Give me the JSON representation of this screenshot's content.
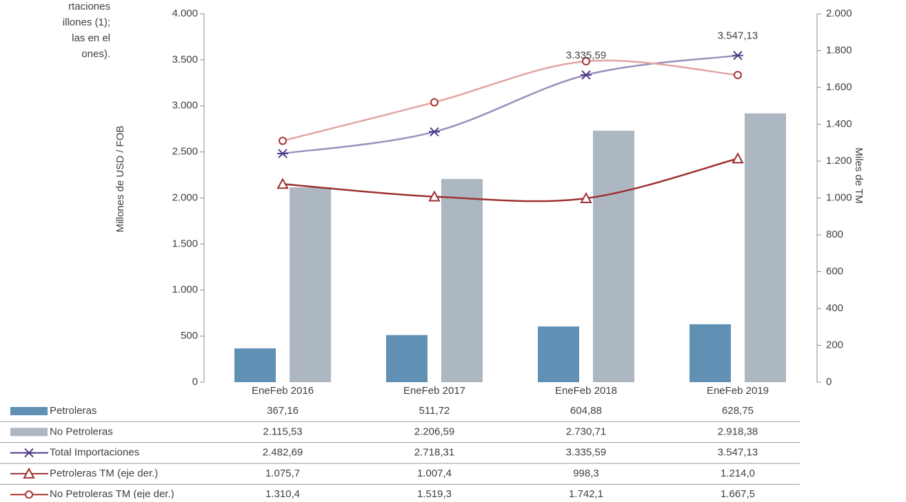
{
  "chart_data": {
    "type": "bar_line",
    "note_lines": [
      "rtaciones",
      "illones (1);",
      "las en el",
      "ones)."
    ],
    "y_label": "Millones de USD / FOB",
    "y2_label": "Miles de TM",
    "categories": [
      "EneFeb 2016",
      "EneFeb 2017",
      "EneFeb 2018",
      "EneFeb 2019"
    ],
    "ylim": [
      0,
      4000
    ],
    "yticks": [
      0,
      500,
      {
        "value": 1000,
        "label": "1.000"
      },
      {
        "value": 1500,
        "label": "1.500"
      },
      {
        "value": 2000,
        "label": "2.000"
      },
      {
        "value": 2500,
        "label": "2.500"
      },
      {
        "value": 3000,
        "label": "3.000"
      },
      {
        "value": 3500,
        "label": "3.500"
      },
      {
        "value": 4000,
        "label": "4.000"
      }
    ],
    "y2lim": [
      0,
      2000
    ],
    "y2ticks": [
      0,
      200,
      400,
      600,
      800,
      {
        "value": 1000,
        "label": "1.000"
      },
      {
        "value": 1200,
        "label": "1.200"
      },
      {
        "value": 1400,
        "label": "1.400"
      },
      {
        "value": 1600,
        "label": "1.600"
      },
      {
        "value": 1800,
        "label": "1.800"
      },
      {
        "value": 2000,
        "label": "2.000"
      }
    ],
    "series": [
      {
        "name": "Petroleras",
        "kind": "bar",
        "color": "#6190b5",
        "values": [
          367.16,
          511.72,
          604.88,
          628.75
        ],
        "value_labels": [
          "367,16",
          "511,72",
          "604,88",
          "628,75"
        ]
      },
      {
        "name": "No Petroleras",
        "kind": "bar",
        "color": "#adb7c1",
        "values": [
          2115.53,
          2206.59,
          2730.71,
          2918.38
        ],
        "value_labels": [
          "2.115,53",
          "2.206,59",
          "2.730,71",
          "2.918,38"
        ]
      },
      {
        "name": "Total Importaciones",
        "kind": "line",
        "marker": "star",
        "color": "#9a8fbd",
        "marker_color": "#4e3a87",
        "values": [
          2482.69,
          2718.31,
          3335.59,
          3547.13
        ],
        "value_labels": [
          "2.482,69",
          "2.718,31",
          "3.335,59",
          "3.547,13"
        ]
      },
      {
        "name": "Petroleras TM (eje der.)",
        "kind": "line",
        "axis": "y2",
        "marker": "triangle",
        "color": "#9c3030",
        "marker_color": "#9c3030",
        "values": [
          1075.7,
          1007.4,
          998.3,
          1214.0
        ],
        "value_labels": [
          "1.075,7",
          "1.007,4",
          "998,3",
          "1.214,0"
        ]
      },
      {
        "name": "No Petroleras TM (eje der.)",
        "kind": "line",
        "axis": "y2",
        "marker": "circle",
        "color": "#e3a3a3",
        "marker_color": "#a83232",
        "values": [
          1310.4,
          1519.3,
          1742.1,
          1667.5
        ],
        "value_labels": [
          "1.310,4",
          "1.519,3",
          "1.742,1",
          "1.667,5"
        ]
      }
    ],
    "annotations": [
      {
        "series": 2,
        "index": 2
      },
      {
        "series": 2,
        "index": 3
      }
    ]
  }
}
